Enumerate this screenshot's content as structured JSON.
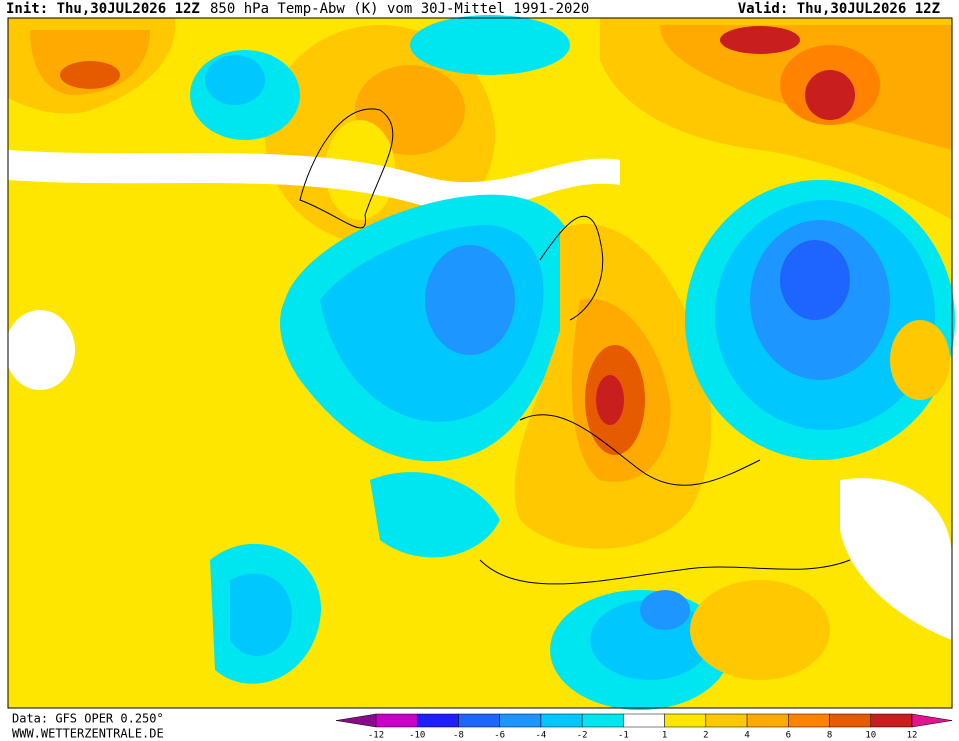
{
  "header": {
    "init": "Init: Thu,30JUL2026 12Z",
    "title": "850 hPa Temp-Abw (K) vom 30J-Mittel 1991-2020",
    "valid": "Valid: Thu,30JUL2026 12Z"
  },
  "footer": {
    "data": "Data: GFS OPER 0.250°",
    "site": "WWW.WETTERZENTRALE.DE"
  },
  "legend": {
    "labels": [
      -12,
      -10,
      -8,
      -6,
      -4,
      -2,
      -1,
      1,
      2,
      4,
      6,
      8,
      10,
      12
    ],
    "colors": [
      "#8b0a8b",
      "#c800c8",
      "#1e1eff",
      "#1e64ff",
      "#1e96ff",
      "#00c8ff",
      "#00e6f0",
      "#ffffff",
      "#ffe600",
      "#ffc800",
      "#ffaa00",
      "#ff8200",
      "#e65a00",
      "#c81e1e",
      "#e6148c"
    ]
  }
}
